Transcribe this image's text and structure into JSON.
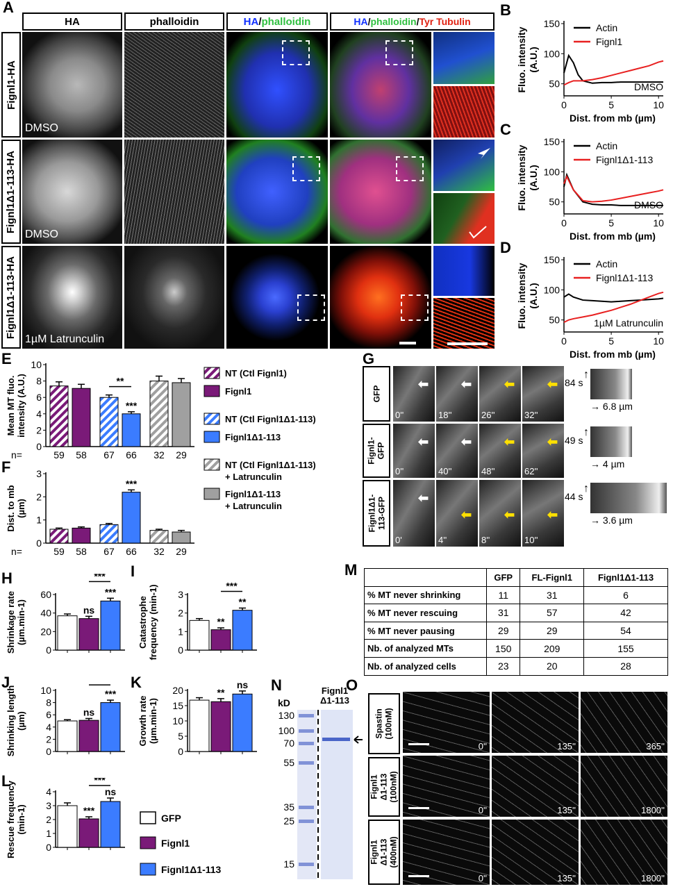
{
  "panel_letters": {
    "A": "A",
    "B": "B",
    "C": "C",
    "D": "D",
    "E": "E",
    "F": "F",
    "G": "G",
    "H": "H",
    "I": "I",
    "J": "J",
    "K": "K",
    "L": "L",
    "M": "M",
    "N": "N",
    "O": "O"
  },
  "panelA": {
    "col_headers": {
      "ha": "HA",
      "phalloidin": "phalloidin",
      "merge2_ha": "HA",
      "merge2_slash": "/",
      "merge2_ph": "phalloidin",
      "merge3_ha": "HA",
      "merge3_slash1": "/",
      "merge3_ph": "phalloidin",
      "merge3_slash2": "/",
      "merge3_tub": "Tyr Tubulin"
    },
    "rows": [
      "Fignl1-HA",
      "Fignl1Δ1-113-HA",
      "Fignl1Δ1-113-HA"
    ],
    "conditions": [
      "DMSO",
      "DMSO",
      "1µM Latrunculin"
    ],
    "colors": {
      "ha": "#1030ff",
      "phalloidin": "#30d040",
      "tubulin": "#ff2010"
    }
  },
  "line_panels": {
    "ylabel": "Fluo. intensity (A.U.)",
    "xlabel": "Dist. from mb (µm)",
    "B": {
      "legend": [
        "Actin",
        "Fignl1"
      ],
      "condition": "DMSO"
    },
    "C": {
      "legend": [
        "Actin",
        "Fignl1Δ1-113"
      ],
      "condition": "DMSO"
    },
    "D": {
      "legend": [
        "Actin",
        "Fignl1Δ1-113"
      ],
      "condition": "1µM Latrunculin"
    }
  },
  "legend_EF": [
    {
      "label": "NT (Ctl Fignl1)"
    },
    {
      "label": "Fignl1"
    },
    {
      "label": "NT (Ctl Fignl1Δ1-113)"
    },
    {
      "label": "Fignl1Δ1-113"
    },
    {
      "label": "NT (Ctl Fignl1Δ1-113) + Latrunculin"
    },
    {
      "label": "Fignl1Δ1-113 + Latrunculin"
    }
  ],
  "n_labels": {
    "prefix": "n=",
    "values": [
      "59",
      "58",
      "67",
      "66",
      "32",
      "29"
    ]
  },
  "legend_HL": [
    {
      "label": "GFP"
    },
    {
      "label": "Fignl1"
    },
    {
      "label": "Fignl1Δ1-113"
    }
  ],
  "panelG": {
    "rows": [
      "GFP",
      "Fignl1-GFP",
      "Fignl1Δ1-113-GFP"
    ],
    "times": [
      [
        "0''",
        "18''",
        "26''",
        "32''"
      ],
      [
        "0''",
        "40''",
        "48''",
        "62''"
      ],
      [
        "0'",
        "4''",
        "8''",
        "10''"
      ]
    ],
    "kymo": [
      {
        "t": "84 s",
        "d": "6.8 µm"
      },
      {
        "t": "49 s",
        "d": "4 µm"
      },
      {
        "t": "44 s",
        "d": "3.6 µm"
      }
    ]
  },
  "panelM": {
    "headers": [
      "",
      "GFP",
      "FL-Fignl1",
      "Fignl1Δ1-113"
    ],
    "rows": [
      [
        "% MT never shrinking",
        "11",
        "31",
        "6"
      ],
      [
        "% MT never rescuing",
        "31",
        "57",
        "42"
      ],
      [
        "% MT never pausing",
        "29",
        "29",
        "54"
      ],
      [
        "Nb. of analyzed MTs",
        "150",
        "209",
        "155"
      ],
      [
        "Nb. of analyzed cells",
        "23",
        "20",
        "28"
      ]
    ]
  },
  "panelN": {
    "kd_label": "kD",
    "lane_title": "Fignl1 Δ1-113",
    "markers": [
      "130",
      "100",
      "70",
      "55",
      "35",
      "25",
      "15"
    ]
  },
  "panelO": {
    "rows": [
      "Spastin (100nM)",
      "Fignl1 Δ1-113 (100nM)",
      "Fignl1 Δ1-113 (400nM)"
    ],
    "times": [
      [
        "0''",
        "135''",
        "365''"
      ],
      [
        "0''",
        "135''",
        "1800''"
      ],
      [
        "0''",
        "135''",
        "1800''"
      ]
    ]
  },
  "chart_data": [
    {
      "id": "B",
      "type": "line",
      "xlabel": "Dist. from mb (µm)",
      "ylabel": "Fluo. intensity (A.U.)",
      "xlim": [
        0,
        10.5
      ],
      "ylim": [
        30,
        150
      ],
      "xticks": [
        0,
        5,
        10
      ],
      "yticks": [
        50,
        100,
        150
      ],
      "annotation": "DMSO",
      "series": [
        {
          "name": "Actin",
          "color": "#000000",
          "x": [
            0,
            0.5,
            1,
            1.5,
            2,
            3,
            4,
            5,
            6,
            7,
            8,
            9,
            10,
            10.5
          ],
          "y": [
            68,
            97,
            85,
            65,
            55,
            51,
            52,
            52,
            53,
            53,
            53,
            53,
            53,
            53
          ]
        },
        {
          "name": "Fignl1",
          "color": "#e82020",
          "x": [
            0,
            0.5,
            1,
            2,
            3,
            4,
            5,
            6,
            7,
            8,
            9,
            10,
            10.5
          ],
          "y": [
            48,
            52,
            55,
            55,
            57,
            60,
            64,
            68,
            72,
            76,
            80,
            86,
            88
          ]
        }
      ]
    },
    {
      "id": "C",
      "type": "line",
      "xlabel": "Dist. from mb (µm)",
      "ylabel": "Fluo. intensity (A.U.)",
      "xlim": [
        0,
        10.5
      ],
      "ylim": [
        30,
        150
      ],
      "xticks": [
        0,
        5,
        10
      ],
      "yticks": [
        50,
        100,
        150
      ],
      "annotation": "DMSO",
      "series": [
        {
          "name": "Actin",
          "color": "#000000",
          "x": [
            0,
            0.3,
            1,
            2,
            3,
            4,
            5,
            6,
            7,
            8,
            9,
            10,
            10.5
          ],
          "y": [
            75,
            95,
            70,
            50,
            46,
            45,
            45,
            44,
            44,
            44,
            44,
            44,
            44
          ]
        },
        {
          "name": "Fignl1Δ1-113",
          "color": "#e82020",
          "x": [
            0,
            0.3,
            1,
            2,
            3,
            4,
            5,
            6,
            7,
            8,
            9,
            10,
            10.5
          ],
          "y": [
            80,
            92,
            70,
            52,
            50,
            51,
            53,
            56,
            59,
            62,
            65,
            68,
            70
          ]
        }
      ]
    },
    {
      "id": "D",
      "type": "line",
      "xlabel": "Dist. from mb (µm)",
      "ylabel": "Fluo. intensity (A.U.)",
      "xlim": [
        0,
        10.5
      ],
      "ylim": [
        30,
        150
      ],
      "xticks": [
        0,
        5,
        10
      ],
      "yticks": [
        50,
        100,
        150
      ],
      "annotation": "1µM Latrunculin",
      "series": [
        {
          "name": "Actin",
          "color": "#000000",
          "x": [
            0,
            0.5,
            1,
            2,
            3,
            4,
            5,
            6,
            7,
            8,
            9,
            10,
            10.5
          ],
          "y": [
            88,
            93,
            88,
            83,
            82,
            81,
            80,
            81,
            82,
            83,
            84,
            85,
            86
          ]
        },
        {
          "name": "Fignl1Δ1-113",
          "color": "#e82020",
          "x": [
            0,
            0.5,
            1,
            2,
            3,
            4,
            5,
            6,
            7,
            8,
            9,
            10,
            10.5
          ],
          "y": [
            46,
            50,
            52,
            55,
            58,
            62,
            66,
            71,
            76,
            82,
            88,
            94,
            96
          ]
        }
      ]
    },
    {
      "id": "E",
      "type": "bar",
      "ylabel": "Mean MT fluo. intensity (A.U.)",
      "ylim": [
        0,
        10
      ],
      "yticks": [
        0,
        2,
        4,
        6,
        8,
        10
      ],
      "categories": [
        "NT (Ctl Fignl1)",
        "Fignl1",
        "NT (Ctl Fignl1Δ1-113)",
        "Fignl1Δ1-113",
        "NT (Ctl Fignl1Δ1-113) + Latrunculin",
        "Fignl1Δ1-113 + Latrunculin"
      ],
      "values": [
        7.4,
        7.1,
        6.0,
        4.0,
        8.0,
        7.8
      ],
      "errors": [
        0.5,
        0.5,
        0.3,
        0.25,
        0.6,
        0.5
      ],
      "annotations": [
        {
          "text": "**",
          "between": [
            2,
            3
          ]
        },
        {
          "text": "***",
          "over": 3
        }
      ]
    },
    {
      "id": "F",
      "type": "bar",
      "ylabel": "Dist. to mb (µm)",
      "ylim": [
        0,
        3
      ],
      "yticks": [
        0,
        1,
        2,
        3
      ],
      "categories": [
        "NT (Ctl Fignl1)",
        "Fignl1",
        "NT (Ctl Fignl1Δ1-113)",
        "Fignl1Δ1-113",
        "NT (Ctl Fignl1Δ1-113) + Latrunculin",
        "Fignl1Δ1-113 + Latrunculin"
      ],
      "values": [
        0.6,
        0.65,
        0.8,
        2.2,
        0.55,
        0.48
      ],
      "errors": [
        0.05,
        0.05,
        0.05,
        0.1,
        0.05,
        0.07
      ],
      "annotations": [
        {
          "text": "***",
          "over": 3
        }
      ]
    },
    {
      "id": "H",
      "type": "bar",
      "ylabel": "Shrinkage rate (µm.min-1)",
      "ylim": [
        0,
        60
      ],
      "yticks": [
        0,
        20,
        40,
        60
      ],
      "categories": [
        "GFP",
        "Fignl1",
        "Fignl1Δ1-113"
      ],
      "values": [
        37,
        34,
        53
      ],
      "errors": [
        2,
        2.5,
        3
      ],
      "annotations": [
        {
          "text": "ns",
          "over": 1
        },
        {
          "text": "***",
          "over": 2
        },
        {
          "text": "***",
          "between": [
            1,
            2
          ]
        }
      ]
    },
    {
      "id": "I",
      "type": "bar",
      "ylabel": "Catastrophe frequency (min-1)",
      "ylim": [
        0,
        3
      ],
      "yticks": [
        0,
        1,
        2,
        3
      ],
      "categories": [
        "GFP",
        "Fignl1",
        "Fignl1Δ1-113"
      ],
      "values": [
        1.6,
        1.1,
        2.15
      ],
      "errors": [
        0.1,
        0.1,
        0.12
      ],
      "annotations": [
        {
          "text": "**",
          "over": 1
        },
        {
          "text": "**",
          "over": 2
        },
        {
          "text": "***",
          "between": [
            1,
            2
          ]
        }
      ]
    },
    {
      "id": "J",
      "type": "bar",
      "ylabel": "Shrinking length (µm)",
      "ylim": [
        0,
        10
      ],
      "yticks": [
        0,
        2,
        4,
        6,
        8,
        10
      ],
      "categories": [
        "GFP",
        "Fignl1",
        "Fignl1Δ1-113"
      ],
      "values": [
        5.0,
        5.1,
        8.0
      ],
      "errors": [
        0.2,
        0.3,
        0.4
      ],
      "annotations": [
        {
          "text": "ns",
          "over": 1
        },
        {
          "text": "***",
          "over": 2
        },
        {
          "text": "***",
          "between": [
            1,
            2
          ]
        }
      ]
    },
    {
      "id": "K",
      "type": "bar",
      "ylabel": "Growth rate (µm.min-1)",
      "ylim": [
        0,
        20
      ],
      "yticks": [
        0,
        5,
        10,
        15,
        20
      ],
      "categories": [
        "GFP",
        "Fignl1",
        "Fignl1Δ1-113"
      ],
      "values": [
        16.8,
        16.3,
        18.8
      ],
      "errors": [
        0.8,
        1.0,
        1.0
      ],
      "annotations": [
        {
          "text": "**",
          "over": 1
        },
        {
          "text": "ns",
          "over": 2
        },
        {
          "text": "**",
          "between": [
            1,
            2
          ]
        }
      ]
    },
    {
      "id": "L",
      "type": "bar",
      "ylabel": "Rescue frequency (min-1)",
      "ylim": [
        0,
        4
      ],
      "yticks": [
        0,
        1,
        2,
        3,
        4
      ],
      "categories": [
        "GFP",
        "Fignl1",
        "Fignl1Δ1-113"
      ],
      "values": [
        3.0,
        2.05,
        3.3
      ],
      "errors": [
        0.2,
        0.15,
        0.25
      ],
      "annotations": [
        {
          "text": "***",
          "over": 1
        },
        {
          "text": "ns",
          "over": 2
        },
        {
          "text": "***",
          "between": [
            1,
            2
          ]
        }
      ]
    }
  ]
}
